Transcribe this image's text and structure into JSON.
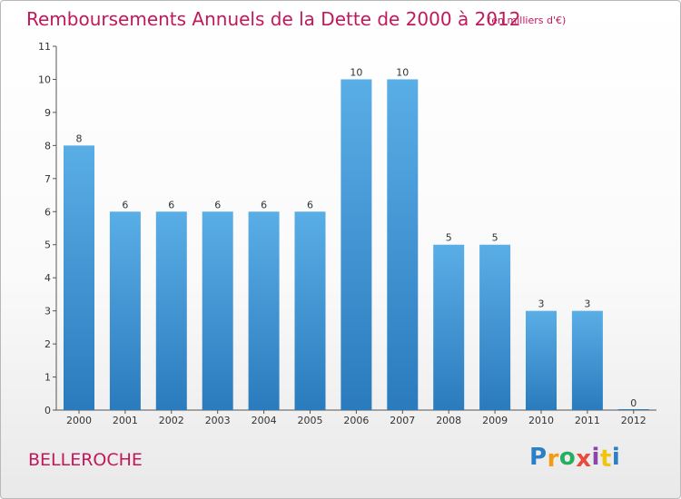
{
  "title": "Remboursements Annuels de la Dette de 2000 à 2012",
  "unit_note": "(en milliers d'€)",
  "commune": "BELLEROCHE",
  "logo": {
    "letters": [
      "P",
      "r",
      "o",
      "x",
      "i",
      "t",
      "i"
    ],
    "colors": [
      "#2b7fc4",
      "#f39c12",
      "#27ae60",
      "#e74c3c",
      "#8e44ad",
      "#f1c40f",
      "#2b7fc4"
    ]
  },
  "colors": {
    "bar_light": "#5aaee6",
    "bar_dark": "#2a7bbd",
    "text": "#c2185b"
  },
  "chart_data": {
    "type": "bar",
    "categories": [
      "2000",
      "2001",
      "2002",
      "2003",
      "2004",
      "2005",
      "2006",
      "2007",
      "2008",
      "2009",
      "2010",
      "2011",
      "2012"
    ],
    "values": [
      8,
      6,
      6,
      6,
      6,
      6,
      10,
      10,
      5,
      5,
      3,
      3,
      0
    ],
    "data_labels": [
      "8",
      "6",
      "6",
      "6",
      "6",
      "6",
      "10",
      "10",
      "5",
      "5",
      "3",
      "3",
      "0"
    ],
    "yticks": [
      "0",
      "1",
      "2",
      "3",
      "4",
      "5",
      "6",
      "7",
      "8",
      "9",
      "10",
      "11"
    ],
    "ylim": [
      0,
      11
    ],
    "grid": false,
    "legend": "none"
  }
}
